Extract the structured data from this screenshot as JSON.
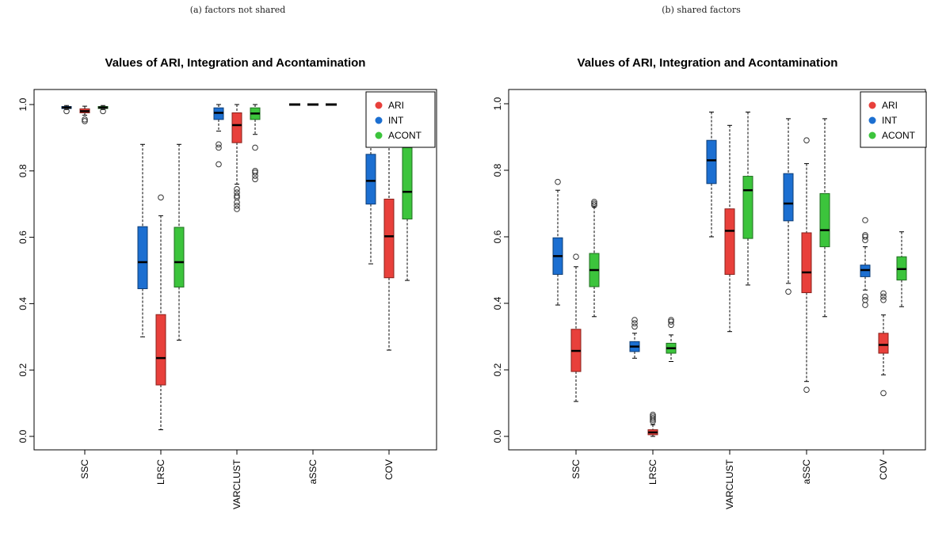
{
  "colors": {
    "ARI": "#e8403b",
    "INT": "#1c6fd1",
    "ACONT": "#3cc43c"
  },
  "chart_data": [
    {
      "type": "boxplot",
      "caption": "(a) factors not shared",
      "title": "Values of ARI, Integration and Acontamination",
      "ylim": [
        0,
        1
      ],
      "yticks": [
        "0.0",
        "0.2",
        "0.4",
        "0.6",
        "0.8",
        "1.0"
      ],
      "categories": [
        "SSC",
        "LRSC",
        "VARCLUST",
        "aSSC",
        "COV"
      ],
      "legend": {
        "position": "top-right",
        "entries": [
          "ARI",
          "INT",
          "ACONT"
        ]
      },
      "series": [
        {
          "name": "INT",
          "boxes": [
            {
              "category": "SSC",
              "whislo": 0.985,
              "q1": 0.988,
              "med": 0.991,
              "q3": 0.994,
              "whishi": 0.997,
              "outliers": [
                0.98
              ]
            },
            {
              "category": "LRSC",
              "whislo": 0.3,
              "q1": 0.445,
              "med": 0.525,
              "q3": 0.632,
              "whishi": 0.88,
              "outliers": []
            },
            {
              "category": "VARCLUST",
              "whislo": 0.92,
              "q1": 0.955,
              "med": 0.975,
              "q3": 0.99,
              "whishi": 1.0,
              "outliers": [
                0.82,
                0.87,
                0.88
              ]
            },
            {
              "category": "aSSC",
              "whislo": 1.0,
              "q1": 1.0,
              "med": 1.0,
              "q3": 1.0,
              "whishi": 1.0,
              "outliers": []
            },
            {
              "category": "COV",
              "whislo": 0.52,
              "q1": 0.7,
              "med": 0.77,
              "q3": 0.85,
              "whishi": 1.0,
              "outliers": []
            }
          ]
        },
        {
          "name": "ARI",
          "boxes": [
            {
              "category": "SSC",
              "whislo": 0.968,
              "q1": 0.975,
              "med": 0.98,
              "q3": 0.987,
              "whishi": 0.995,
              "outliers": [
                0.95,
                0.955
              ]
            },
            {
              "category": "LRSC",
              "whislo": 0.02,
              "q1": 0.155,
              "med": 0.236,
              "q3": 0.367,
              "whishi": 0.665,
              "outliers": [
                0.72
              ]
            },
            {
              "category": "VARCLUST",
              "whislo": 0.76,
              "q1": 0.885,
              "med": 0.938,
              "q3": 0.975,
              "whishi": 1.0,
              "outliers": [
                0.685,
                0.695,
                0.705,
                0.72,
                0.725,
                0.735,
                0.745
              ]
            },
            {
              "category": "aSSC",
              "whislo": 1.0,
              "q1": 1.0,
              "med": 1.0,
              "q3": 1.0,
              "whishi": 1.0,
              "outliers": []
            },
            {
              "category": "COV",
              "whislo": 0.26,
              "q1": 0.478,
              "med": 0.603,
              "q3": 0.715,
              "whishi": 1.0,
              "outliers": []
            }
          ]
        },
        {
          "name": "ACONT",
          "boxes": [
            {
              "category": "SSC",
              "whislo": 0.985,
              "q1": 0.988,
              "med": 0.991,
              "q3": 0.994,
              "whishi": 0.997,
              "outliers": [
                0.98
              ]
            },
            {
              "category": "LRSC",
              "whislo": 0.29,
              "q1": 0.45,
              "med": 0.525,
              "q3": 0.63,
              "whishi": 0.88,
              "outliers": []
            },
            {
              "category": "VARCLUST",
              "whislo": 0.91,
              "q1": 0.955,
              "med": 0.973,
              "q3": 0.99,
              "whishi": 1.0,
              "outliers": [
                0.775,
                0.785,
                0.795,
                0.8,
                0.87
              ]
            },
            {
              "category": "aSSC",
              "whislo": 1.0,
              "q1": 1.0,
              "med": 1.0,
              "q3": 1.0,
              "whishi": 1.0,
              "outliers": []
            },
            {
              "category": "COV",
              "whislo": 0.47,
              "q1": 0.655,
              "med": 0.737,
              "q3": 0.87,
              "whishi": 1.0,
              "outliers": []
            }
          ]
        }
      ]
    },
    {
      "type": "boxplot",
      "caption": "(b) shared factors",
      "title": "Values of ARI, Integration and Acontamination",
      "ylim": [
        0,
        1
      ],
      "yticks": [
        "0.0",
        "0.2",
        "0.4",
        "0.6",
        "0.8",
        "1.0"
      ],
      "categories": [
        "SSC",
        "LRSC",
        "VARCLUST",
        "aSSC",
        "COV"
      ],
      "legend": {
        "position": "top-right",
        "entries": [
          "ARI",
          "INT",
          "ACONT"
        ]
      },
      "series": [
        {
          "name": "INT",
          "boxes": [
            {
              "category": "SSC",
              "whislo": 0.395,
              "q1": 0.487,
              "med": 0.542,
              "q3": 0.597,
              "whishi": 0.74,
              "outliers": [
                0.765
              ]
            },
            {
              "category": "LRSC",
              "whislo": 0.235,
              "q1": 0.255,
              "med": 0.27,
              "q3": 0.285,
              "whishi": 0.31,
              "outliers": [
                0.33,
                0.34,
                0.35
              ]
            },
            {
              "category": "VARCLUST",
              "whislo": 0.6,
              "q1": 0.76,
              "med": 0.83,
              "q3": 0.89,
              "whishi": 0.975,
              "outliers": []
            },
            {
              "category": "aSSC",
              "whislo": 0.46,
              "q1": 0.648,
              "med": 0.7,
              "q3": 0.79,
              "whishi": 0.955,
              "outliers": [
                0.435
              ]
            },
            {
              "category": "COV",
              "whislo": 0.44,
              "q1": 0.48,
              "med": 0.5,
              "q3": 0.515,
              "whishi": 0.57,
              "outliers": [
                0.395,
                0.41,
                0.42,
                0.59,
                0.6,
                0.605,
                0.65
              ]
            }
          ]
        },
        {
          "name": "ARI",
          "boxes": [
            {
              "category": "SSC",
              "whislo": 0.105,
              "q1": 0.195,
              "med": 0.257,
              "q3": 0.322,
              "whishi": 0.51,
              "outliers": [
                0.54
              ]
            },
            {
              "category": "LRSC",
              "whislo": 0.0,
              "q1": 0.005,
              "med": 0.012,
              "q3": 0.02,
              "whishi": 0.035,
              "outliers": [
                0.045,
                0.05,
                0.055,
                0.06,
                0.065
              ]
            },
            {
              "category": "VARCLUST",
              "whislo": 0.315,
              "q1": 0.487,
              "med": 0.618,
              "q3": 0.684,
              "whishi": 0.935,
              "outliers": []
            },
            {
              "category": "aSSC",
              "whislo": 0.165,
              "q1": 0.432,
              "med": 0.493,
              "q3": 0.612,
              "whishi": 0.82,
              "outliers": [
                0.14,
                0.89
              ]
            },
            {
              "category": "COV",
              "whislo": 0.185,
              "q1": 0.25,
              "med": 0.275,
              "q3": 0.31,
              "whishi": 0.365,
              "outliers": [
                0.13,
                0.41,
                0.42,
                0.43
              ]
            }
          ]
        },
        {
          "name": "ACONT",
          "boxes": [
            {
              "category": "SSC",
              "whislo": 0.36,
              "q1": 0.45,
              "med": 0.5,
              "q3": 0.55,
              "whishi": 0.69,
              "outliers": [
                0.695,
                0.7,
                0.705
              ]
            },
            {
              "category": "LRSC",
              "whislo": 0.225,
              "q1": 0.25,
              "med": 0.265,
              "q3": 0.28,
              "whishi": 0.305,
              "outliers": [
                0.335,
                0.345,
                0.35
              ]
            },
            {
              "category": "VARCLUST",
              "whislo": 0.455,
              "q1": 0.595,
              "med": 0.74,
              "q3": 0.782,
              "whishi": 0.975,
              "outliers": []
            },
            {
              "category": "aSSC",
              "whislo": 0.36,
              "q1": 0.57,
              "med": 0.62,
              "q3": 0.73,
              "whishi": 0.955,
              "outliers": []
            },
            {
              "category": "COV",
              "whislo": 0.39,
              "q1": 0.47,
              "med": 0.503,
              "q3": 0.54,
              "whishi": 0.615,
              "outliers": []
            }
          ]
        }
      ]
    }
  ]
}
